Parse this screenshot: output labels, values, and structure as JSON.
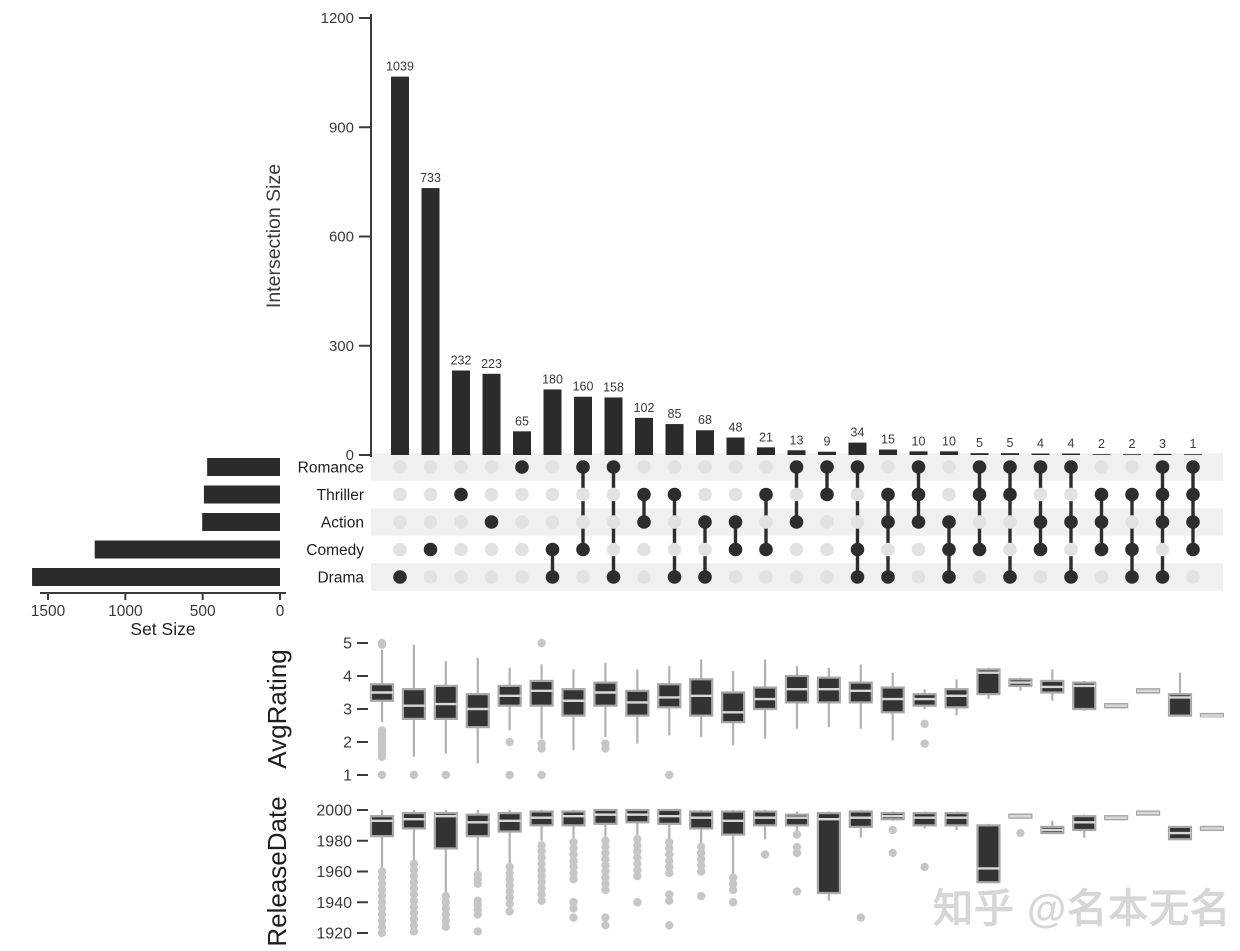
{
  "watermark": {
    "text": "知乎 @名本无名"
  },
  "colors": {
    "bar": "#2b2b2b",
    "dot_active": "#2d2d2d",
    "dot_inactive": "#e2e2e2",
    "stripe": "#f0f0f0",
    "box_fill": "#333333",
    "box_border": "#a8a8a8",
    "median": "#d8d8d8",
    "whisker": "#b2b2b2",
    "outlier": "#c6c6c6",
    "axis": "#3a3a3a",
    "text": "#3a3a3a",
    "row_label": "#1e1e1e"
  },
  "chart_data": {
    "type": "upset",
    "sets": [
      {
        "name": "Romance",
        "size": 471
      },
      {
        "name": "Thriller",
        "size": 492
      },
      {
        "name": "Action",
        "size": 503
      },
      {
        "name": "Comedy",
        "size": 1198
      },
      {
        "name": "Drama",
        "size": 1603
      }
    ],
    "set_size_axis": {
      "label": "Set Size",
      "ticks": [
        1500,
        1000,
        500,
        0
      ],
      "max": 1500
    },
    "intersection_axis": {
      "label": "Intersection Size",
      "ticks": [
        0,
        300,
        600,
        900,
        1200
      ],
      "max": 1200
    },
    "intersections": [
      {
        "sets": [
          "Drama"
        ],
        "size": 1039
      },
      {
        "sets": [
          "Comedy"
        ],
        "size": 733
      },
      {
        "sets": [
          "Thriller"
        ],
        "size": 232
      },
      {
        "sets": [
          "Action"
        ],
        "size": 223
      },
      {
        "sets": [
          "Romance"
        ],
        "size": 65
      },
      {
        "sets": [
          "Comedy",
          "Drama"
        ],
        "size": 180
      },
      {
        "sets": [
          "Romance",
          "Comedy"
        ],
        "size": 160
      },
      {
        "sets": [
          "Romance",
          "Drama"
        ],
        "size": 158
      },
      {
        "sets": [
          "Thriller",
          "Action"
        ],
        "size": 102
      },
      {
        "sets": [
          "Thriller",
          "Drama"
        ],
        "size": 85
      },
      {
        "sets": [
          "Action",
          "Drama"
        ],
        "size": 68
      },
      {
        "sets": [
          "Action",
          "Comedy"
        ],
        "size": 48
      },
      {
        "sets": [
          "Thriller",
          "Comedy"
        ],
        "size": 21
      },
      {
        "sets": [
          "Romance",
          "Action"
        ],
        "size": 13
      },
      {
        "sets": [
          "Romance",
          "Thriller"
        ],
        "size": 9
      },
      {
        "sets": [
          "Romance",
          "Comedy",
          "Drama"
        ],
        "size": 34
      },
      {
        "sets": [
          "Thriller",
          "Action",
          "Drama"
        ],
        "size": 15
      },
      {
        "sets": [
          "Romance",
          "Thriller",
          "Action"
        ],
        "size": 10
      },
      {
        "sets": [
          "Action",
          "Comedy",
          "Drama"
        ],
        "size": 10
      },
      {
        "sets": [
          "Romance",
          "Thriller",
          "Comedy"
        ],
        "size": 5
      },
      {
        "sets": [
          "Romance",
          "Thriller",
          "Drama"
        ],
        "size": 5
      },
      {
        "sets": [
          "Romance",
          "Action",
          "Comedy"
        ],
        "size": 4
      },
      {
        "sets": [
          "Romance",
          "Action",
          "Drama"
        ],
        "size": 4
      },
      {
        "sets": [
          "Thriller",
          "Action",
          "Comedy"
        ],
        "size": 2
      },
      {
        "sets": [
          "Thriller",
          "Comedy",
          "Drama"
        ],
        "size": 2
      },
      {
        "sets": [
          "Romance",
          "Thriller",
          "Action",
          "Drama"
        ],
        "size": 3
      },
      {
        "sets": [
          "Romance",
          "Thriller",
          "Action",
          "Comedy"
        ],
        "size": 1
      }
    ],
    "attribute_panels": [
      {
        "label": "AvgRating",
        "ticks": [
          5,
          4,
          3,
          2,
          1
        ],
        "range": [
          1,
          5
        ],
        "boxplots": [
          {
            "lo": 2.6,
            "q1": 3.25,
            "med": 3.5,
            "q3": 3.75,
            "hi": 4.8,
            "outliers": [
              5.0,
              4.95,
              2.35,
              2.25,
              2.15,
              2.05,
              1.95,
              1.85,
              1.75,
              1.65,
              1.55,
              1.0
            ]
          },
          {
            "lo": 1.55,
            "q1": 2.7,
            "med": 3.1,
            "q3": 3.6,
            "hi": 4.95,
            "outliers": [
              1.0
            ]
          },
          {
            "lo": 1.65,
            "q1": 2.7,
            "med": 3.15,
            "q3": 3.7,
            "hi": 4.45,
            "outliers": [
              1.0
            ]
          },
          {
            "lo": 1.35,
            "q1": 2.45,
            "med": 3.0,
            "q3": 3.45,
            "hi": 4.55,
            "outliers": []
          },
          {
            "lo": 2.35,
            "q1": 3.1,
            "med": 3.4,
            "q3": 3.7,
            "hi": 4.25,
            "outliers": [
              2.0,
              1.0
            ]
          },
          {
            "lo": 2.1,
            "q1": 3.1,
            "med": 3.55,
            "q3": 3.85,
            "hi": 4.35,
            "outliers": [
              5.0,
              1.95,
              1.8,
              1.0
            ]
          },
          {
            "lo": 1.75,
            "q1": 2.8,
            "med": 3.25,
            "q3": 3.6,
            "hi": 4.2,
            "outliers": []
          },
          {
            "lo": 2.15,
            "q1": 3.1,
            "med": 3.5,
            "q3": 3.8,
            "hi": 4.4,
            "outliers": [
              1.95,
              1.8
            ]
          },
          {
            "lo": 1.95,
            "q1": 2.8,
            "med": 3.2,
            "q3": 3.55,
            "hi": 4.2,
            "outliers": []
          },
          {
            "lo": 2.2,
            "q1": 3.05,
            "med": 3.35,
            "q3": 3.75,
            "hi": 4.3,
            "outliers": [
              1.0
            ]
          },
          {
            "lo": 2.15,
            "q1": 2.8,
            "med": 3.4,
            "q3": 3.9,
            "hi": 4.5,
            "outliers": []
          },
          {
            "lo": 1.9,
            "q1": 2.6,
            "med": 2.9,
            "q3": 3.5,
            "hi": 4.15,
            "outliers": []
          },
          {
            "lo": 2.1,
            "q1": 3.0,
            "med": 3.3,
            "q3": 3.65,
            "hi": 4.5,
            "outliers": []
          },
          {
            "lo": 2.4,
            "q1": 3.2,
            "med": 3.6,
            "q3": 4.0,
            "hi": 4.3,
            "outliers": []
          },
          {
            "lo": 2.45,
            "q1": 3.2,
            "med": 3.6,
            "q3": 3.95,
            "hi": 4.25,
            "outliers": []
          },
          {
            "lo": 2.4,
            "q1": 3.2,
            "med": 3.55,
            "q3": 3.8,
            "hi": 4.35,
            "outliers": []
          },
          {
            "lo": 2.05,
            "q1": 2.9,
            "med": 3.3,
            "q3": 3.65,
            "hi": 4.1,
            "outliers": []
          },
          {
            "lo": 3.0,
            "q1": 3.1,
            "med": 3.3,
            "q3": 3.45,
            "hi": 3.6,
            "outliers": [
              2.55,
              1.95
            ]
          },
          {
            "lo": 2.8,
            "q1": 3.05,
            "med": 3.4,
            "q3": 3.6,
            "hi": 3.9,
            "outliers": []
          },
          {
            "lo": 3.3,
            "q1": 3.45,
            "med": 4.1,
            "q3": 4.2,
            "hi": 4.25,
            "outliers": []
          },
          {
            "lo": 3.55,
            "q1": 3.7,
            "med": 3.8,
            "q3": 3.9,
            "hi": 3.95,
            "outliers": []
          },
          {
            "lo": 3.25,
            "q1": 3.5,
            "med": 3.67,
            "q3": 3.85,
            "hi": 4.2,
            "outliers": []
          },
          {
            "lo": 2.95,
            "q1": 3.0,
            "med": 3.7,
            "q3": 3.8,
            "hi": 3.85,
            "outliers": []
          },
          {
            "lo": 3.05,
            "q1": 3.05,
            "med": 3.1,
            "q3": 3.15,
            "hi": 3.15,
            "outliers": []
          },
          {
            "lo": 3.5,
            "q1": 3.5,
            "med": 3.55,
            "q3": 3.6,
            "hi": 3.6,
            "outliers": []
          },
          {
            "lo": 2.8,
            "q1": 2.8,
            "med": 3.35,
            "q3": 3.45,
            "hi": 4.1,
            "outliers": []
          },
          {
            "lo": 2.78,
            "q1": 2.78,
            "med": 2.8,
            "q3": 2.85,
            "hi": 2.85,
            "outliers": []
          }
        ]
      },
      {
        "label": "ReleaseDate",
        "ticks": [
          2000,
          1980,
          1960,
          1940,
          1920
        ],
        "range": [
          1920,
          2000
        ],
        "boxplots": [
          {
            "lo": 1962,
            "q1": 1983,
            "med": 1993,
            "q3": 1996,
            "hi": 2000,
            "outliers": [
              1960,
              1956,
              1952,
              1948,
              1944,
              1940,
              1936,
              1932,
              1928,
              1924,
              1920
            ]
          },
          {
            "lo": 1967,
            "q1": 1988,
            "med": 1994,
            "q3": 1998,
            "hi": 2000,
            "outliers": [
              1965,
              1961,
              1957,
              1953,
              1949,
              1945,
              1941,
              1937,
              1933,
              1929,
              1925,
              1921
            ]
          },
          {
            "lo": 1946,
            "q1": 1975,
            "med": 1996,
            "q3": 1998,
            "hi": 2000,
            "outliers": [
              1944,
              1940,
              1936,
              1932,
              1928,
              1924
            ]
          },
          {
            "lo": 1960,
            "q1": 1983,
            "med": 1992,
            "q3": 1997,
            "hi": 2000,
            "outliers": [
              1958,
              1955,
              1952,
              1941,
              1938,
              1935,
              1932,
              1921
            ]
          },
          {
            "lo": 1965,
            "q1": 1986,
            "med": 1993,
            "q3": 1998,
            "hi": 2000,
            "outliers": [
              1963,
              1959,
              1955,
              1951,
              1947,
              1943,
              1939,
              1934
            ]
          },
          {
            "lo": 1980,
            "q1": 1990,
            "med": 1995,
            "q3": 1999,
            "hi": 2000,
            "outliers": [
              1977,
              1973,
              1969,
              1965,
              1961,
              1957,
              1953,
              1949,
              1945,
              1941
            ]
          },
          {
            "lo": 1981,
            "q1": 1990,
            "med": 1996,
            "q3": 1999,
            "hi": 2000,
            "outliers": [
              1979,
              1975,
              1971,
              1967,
              1963,
              1959,
              1955,
              1940,
              1936,
              1930
            ]
          },
          {
            "lo": 1982,
            "q1": 1991,
            "med": 1997,
            "q3": 2000,
            "hi": 2000,
            "outliers": [
              1980,
              1976,
              1972,
              1968,
              1964,
              1960,
              1956,
              1952,
              1948,
              1930,
              1925
            ]
          },
          {
            "lo": 1983,
            "q1": 1992,
            "med": 1997,
            "q3": 2000,
            "hi": 2000,
            "outliers": [
              1981,
              1977,
              1973,
              1969,
              1965,
              1961,
              1957,
              1940
            ]
          },
          {
            "lo": 1981,
            "q1": 1991,
            "med": 1996,
            "q3": 2000,
            "hi": 2000,
            "outliers": [
              1979,
              1975,
              1971,
              1967,
              1963,
              1959,
              1945,
              1941,
              1925
            ]
          },
          {
            "lo": 1978,
            "q1": 1988,
            "med": 1995,
            "q3": 1999,
            "hi": 2000,
            "outliers": [
              1976,
              1972,
              1968,
              1964,
              1960,
              1944
            ]
          },
          {
            "lo": 1958,
            "q1": 1984,
            "med": 1993,
            "q3": 1999,
            "hi": 2000,
            "outliers": [
              1956,
              1952,
              1948,
              1940
            ]
          },
          {
            "lo": 1981,
            "q1": 1990,
            "med": 1995,
            "q3": 1999,
            "hi": 2000,
            "outliers": [
              1971
            ]
          },
          {
            "lo": 1985,
            "q1": 1990,
            "med": 1995,
            "q3": 1997,
            "hi": 1999,
            "outliers": [
              1984,
              1976,
              1972,
              1947
            ]
          },
          {
            "lo": 1941,
            "q1": 1946,
            "med": 1994,
            "q3": 1998,
            "hi": 1999,
            "outliers": []
          },
          {
            "lo": 1982,
            "q1": 1989,
            "med": 1995,
            "q3": 1999,
            "hi": 2000,
            "outliers": [
              1930
            ]
          },
          {
            "lo": 1993,
            "q1": 1994,
            "med": 1996,
            "q3": 1998,
            "hi": 1999,
            "outliers": [
              1987,
              1972
            ]
          },
          {
            "lo": 1988,
            "q1": 1990,
            "med": 1995,
            "q3": 1998,
            "hi": 1999,
            "outliers": [
              1963
            ]
          },
          {
            "lo": 1987,
            "q1": 1990,
            "med": 1995,
            "q3": 1998,
            "hi": 1999,
            "outliers": []
          },
          {
            "lo": 1953,
            "q1": 1953,
            "med": 1962,
            "q3": 1990,
            "hi": 1991,
            "outliers": []
          },
          {
            "lo": 1995,
            "q1": 1995,
            "med": 1996,
            "q3": 1997,
            "hi": 1997,
            "outliers": [
              1985
            ]
          },
          {
            "lo": 1985,
            "q1": 1985,
            "med": 1987,
            "q3": 1989,
            "hi": 1993,
            "outliers": []
          },
          {
            "lo": 1982,
            "q1": 1987,
            "med": 1992,
            "q3": 1996,
            "hi": 1997,
            "outliers": []
          },
          {
            "lo": 1994,
            "q1": 1994,
            "med": 1995,
            "q3": 1996,
            "hi": 1996,
            "outliers": []
          },
          {
            "lo": 1997,
            "q1": 1997,
            "med": 1998,
            "q3": 1999,
            "hi": 1999,
            "outliers": []
          },
          {
            "lo": 1981,
            "q1": 1981,
            "med": 1985,
            "q3": 1989,
            "hi": 1989,
            "outliers": []
          },
          {
            "lo": 1987,
            "q1": 1987,
            "med": 1988,
            "q3": 1989,
            "hi": 1989,
            "outliers": []
          }
        ]
      }
    ]
  }
}
